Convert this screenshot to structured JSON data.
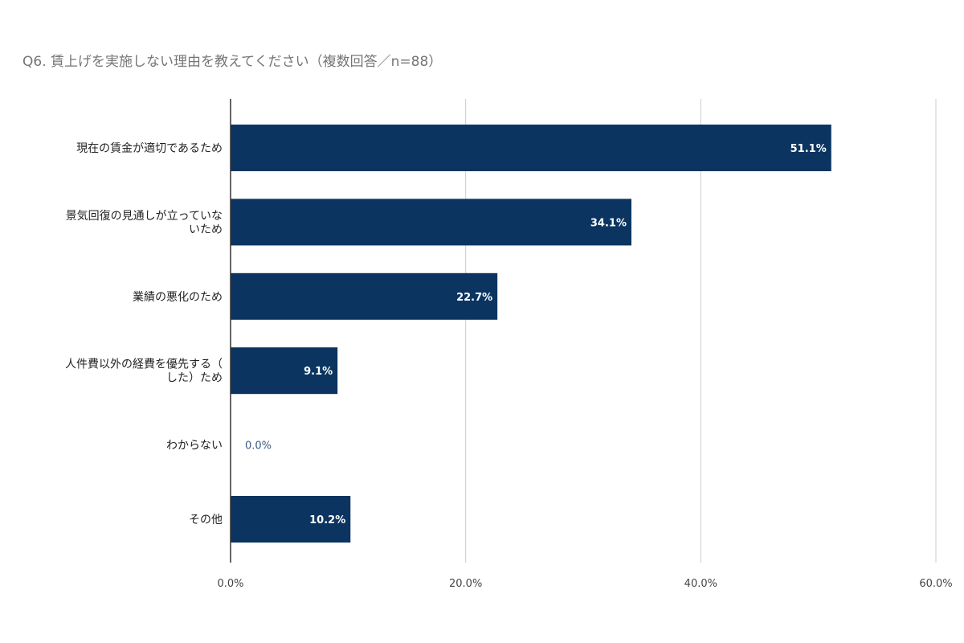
{
  "chart_data": {
    "type": "bar",
    "orientation": "horizontal",
    "title": "Q6. 賃上げを実施しない理由を教えてください（複数回答／n=88）",
    "categories": [
      "現在の賃金が適切であるため",
      "景気回復の見通しが立っていないため",
      "業績の悪化のため",
      "人件費以外の経費を優先する（した）ため",
      "わからない",
      "その他"
    ],
    "category_lines": [
      [
        "現在の賃金が適切であるため"
      ],
      [
        "景気回復の見通しが立っていな",
        "いため"
      ],
      [
        "業績の悪化のため"
      ],
      [
        "人件費以外の経費を優先する（",
        "した）ため"
      ],
      [
        "わからない"
      ],
      [
        "その他"
      ]
    ],
    "values": [
      51.1,
      34.1,
      22.7,
      9.1,
      0.0,
      10.2
    ],
    "value_labels": [
      "51.1%",
      "34.1%",
      "22.7%",
      "9.1%",
      "0.0%",
      "10.2%"
    ],
    "xlim": [
      0,
      60
    ],
    "x_ticks": [
      0,
      20,
      40,
      60
    ],
    "x_tick_labels": [
      "0.0%",
      "20.0%",
      "40.0%",
      "60.0%"
    ],
    "grid": true,
    "legend": "none",
    "bar_color": "#0b3560"
  }
}
